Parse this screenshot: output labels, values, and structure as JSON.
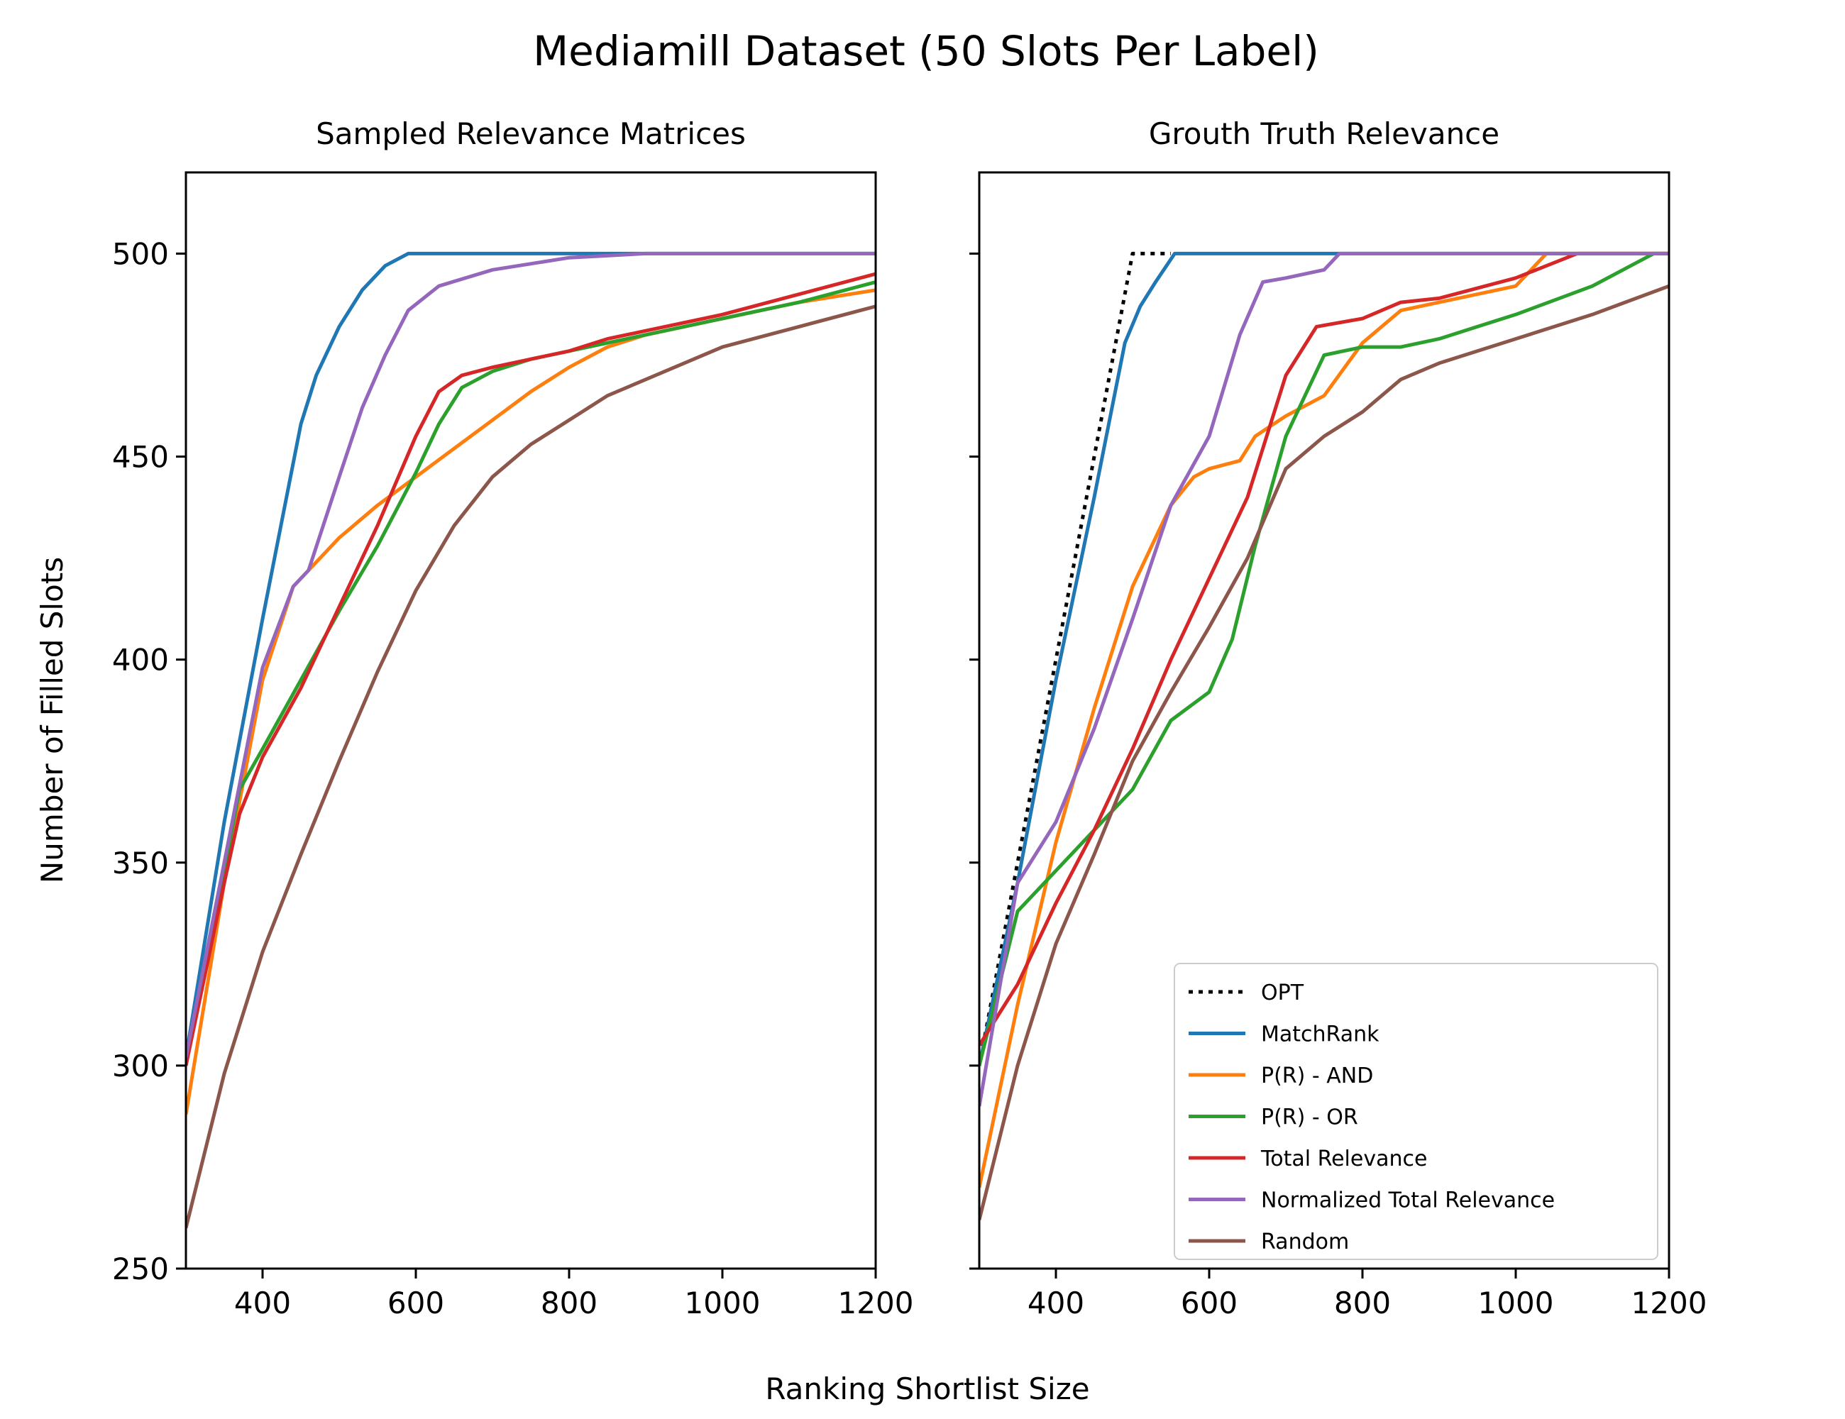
{
  "chart_data": {
    "type": "line",
    "title": "Mediamill Dataset (50 Slots Per Label)",
    "xlabel": "Ranking Shortlist Size",
    "ylabel": "Number of Filled Slots",
    "xlim": [
      300,
      1200
    ],
    "ylim": [
      250,
      520
    ],
    "xticks": [
      400,
      600,
      800,
      1000,
      1200
    ],
    "yticks": [
      250,
      300,
      350,
      400,
      450,
      500
    ],
    "legend": {
      "placement": "lower-right",
      "panel": "right"
    },
    "grid": false,
    "colors": {
      "OPT": "#000000",
      "MatchRank": "#1f77b4",
      "P(R) - AND": "#ff7f0e",
      "P(R) - OR": "#2ca02c",
      "Total Relevance": "#d62728",
      "Normalized Total Relevance": "#9467bd",
      "Random": "#8c564b"
    },
    "panels": [
      {
        "title": "Sampled Relevance Matrices",
        "series": [
          {
            "name": "MatchRank",
            "style": "solid",
            "points": [
              [
                300,
                302
              ],
              [
                350,
                360
              ],
              [
                400,
                410
              ],
              [
                450,
                458
              ],
              [
                470,
                470
              ],
              [
                500,
                482
              ],
              [
                530,
                491
              ],
              [
                560,
                497
              ],
              [
                590,
                500
              ],
              [
                1200,
                500
              ]
            ]
          },
          {
            "name": "P(R) - AND",
            "style": "solid",
            "points": [
              [
                300,
                288
              ],
              [
                350,
                345
              ],
              [
                400,
                395
              ],
              [
                440,
                418
              ],
              [
                460,
                422
              ],
              [
                500,
                430
              ],
              [
                550,
                438
              ],
              [
                600,
                445
              ],
              [
                650,
                452
              ],
              [
                700,
                459
              ],
              [
                750,
                466
              ],
              [
                800,
                472
              ],
              [
                850,
                477
              ],
              [
                900,
                480
              ],
              [
                1000,
                484
              ],
              [
                1100,
                488
              ],
              [
                1200,
                491
              ]
            ]
          },
          {
            "name": "P(R) - OR",
            "style": "solid",
            "points": [
              [
                300,
                300
              ],
              [
                350,
                348
              ],
              [
                370,
                368
              ],
              [
                400,
                378
              ],
              [
                450,
                395
              ],
              [
                500,
                412
              ],
              [
                550,
                428
              ],
              [
                600,
                446
              ],
              [
                630,
                458
              ],
              [
                660,
                467
              ],
              [
                700,
                471
              ],
              [
                750,
                474
              ],
              [
                800,
                476
              ],
              [
                850,
                478
              ],
              [
                900,
                480
              ],
              [
                1000,
                484
              ],
              [
                1100,
                488
              ],
              [
                1200,
                493
              ]
            ]
          },
          {
            "name": "Total Relevance",
            "style": "solid",
            "points": [
              [
                300,
                300
              ],
              [
                350,
                345
              ],
              [
                370,
                362
              ],
              [
                400,
                376
              ],
              [
                450,
                393
              ],
              [
                500,
                413
              ],
              [
                550,
                433
              ],
              [
                600,
                455
              ],
              [
                630,
                466
              ],
              [
                660,
                470
              ],
              [
                700,
                472
              ],
              [
                750,
                474
              ],
              [
                800,
                476
              ],
              [
                850,
                479
              ],
              [
                900,
                481
              ],
              [
                1000,
                485
              ],
              [
                1100,
                490
              ],
              [
                1200,
                495
              ]
            ]
          },
          {
            "name": "Normalized Total Relevance",
            "style": "solid",
            "points": [
              [
                300,
                302
              ],
              [
                350,
                350
              ],
              [
                400,
                398
              ],
              [
                440,
                418
              ],
              [
                460,
                422
              ],
              [
                500,
                445
              ],
              [
                530,
                462
              ],
              [
                560,
                475
              ],
              [
                590,
                486
              ],
              [
                630,
                492
              ],
              [
                700,
                496
              ],
              [
                800,
                499
              ],
              [
                900,
                500
              ],
              [
                1200,
                500
              ]
            ]
          },
          {
            "name": "Random",
            "style": "solid",
            "points": [
              [
                300,
                260
              ],
              [
                350,
                298
              ],
              [
                400,
                328
              ],
              [
                450,
                352
              ],
              [
                500,
                375
              ],
              [
                550,
                397
              ],
              [
                600,
                417
              ],
              [
                650,
                433
              ],
              [
                700,
                445
              ],
              [
                750,
                453
              ],
              [
                800,
                459
              ],
              [
                850,
                465
              ],
              [
                900,
                469
              ],
              [
                1000,
                477
              ],
              [
                1100,
                482
              ],
              [
                1200,
                487
              ]
            ]
          }
        ]
      },
      {
        "title": "Grouth Truth Relevance",
        "series": [
          {
            "name": "OPT",
            "style": "dotted",
            "points": [
              [
                300,
                300
              ],
              [
                350,
                350
              ],
              [
                400,
                400
              ],
              [
                450,
                450
              ],
              [
                500,
                500
              ],
              [
                550,
                500
              ]
            ]
          },
          {
            "name": "MatchRank",
            "style": "solid",
            "points": [
              [
                300,
                300
              ],
              [
                350,
                345
              ],
              [
                400,
                395
              ],
              [
                450,
                440
              ],
              [
                490,
                478
              ],
              [
                510,
                487
              ],
              [
                530,
                493
              ],
              [
                555,
                500
              ],
              [
                1200,
                500
              ]
            ]
          },
          {
            "name": "P(R) - AND",
            "style": "solid",
            "points": [
              [
                300,
                270
              ],
              [
                350,
                315
              ],
              [
                400,
                355
              ],
              [
                450,
                388
              ],
              [
                500,
                418
              ],
              [
                550,
                438
              ],
              [
                580,
                445
              ],
              [
                600,
                447
              ],
              [
                640,
                449
              ],
              [
                660,
                455
              ],
              [
                700,
                460
              ],
              [
                750,
                465
              ],
              [
                800,
                478
              ],
              [
                850,
                486
              ],
              [
                900,
                488
              ],
              [
                1000,
                492
              ],
              [
                1040,
                500
              ],
              [
                1200,
                500
              ]
            ]
          },
          {
            "name": "P(R) - OR",
            "style": "solid",
            "points": [
              [
                300,
                300
              ],
              [
                350,
                338
              ],
              [
                400,
                348
              ],
              [
                450,
                358
              ],
              [
                500,
                368
              ],
              [
                550,
                385
              ],
              [
                600,
                392
              ],
              [
                630,
                405
              ],
              [
                660,
                428
              ],
              [
                700,
                455
              ],
              [
                750,
                475
              ],
              [
                800,
                477
              ],
              [
                850,
                477
              ],
              [
                900,
                479
              ],
              [
                950,
                482
              ],
              [
                1000,
                485
              ],
              [
                1100,
                492
              ],
              [
                1180,
                500
              ],
              [
                1200,
                500
              ]
            ]
          },
          {
            "name": "Total Relevance",
            "style": "solid",
            "points": [
              [
                300,
                305
              ],
              [
                350,
                320
              ],
              [
                400,
                340
              ],
              [
                450,
                358
              ],
              [
                500,
                378
              ],
              [
                550,
                400
              ],
              [
                600,
                420
              ],
              [
                650,
                440
              ],
              [
                700,
                470
              ],
              [
                740,
                482
              ],
              [
                800,
                484
              ],
              [
                850,
                488
              ],
              [
                900,
                489
              ],
              [
                1000,
                494
              ],
              [
                1080,
                500
              ],
              [
                1200,
                500
              ]
            ]
          },
          {
            "name": "Normalized Total Relevance",
            "style": "solid",
            "points": [
              [
                300,
                290
              ],
              [
                350,
                345
              ],
              [
                400,
                360
              ],
              [
                450,
                383
              ],
              [
                500,
                410
              ],
              [
                550,
                438
              ],
              [
                600,
                455
              ],
              [
                640,
                480
              ],
              [
                670,
                493
              ],
              [
                700,
                494
              ],
              [
                750,
                496
              ],
              [
                770,
                500
              ],
              [
                1200,
                500
              ]
            ]
          },
          {
            "name": "Random",
            "style": "solid",
            "points": [
              [
                300,
                262
              ],
              [
                350,
                300
              ],
              [
                400,
                330
              ],
              [
                450,
                352
              ],
              [
                500,
                375
              ],
              [
                550,
                392
              ],
              [
                600,
                408
              ],
              [
                650,
                425
              ],
              [
                700,
                447
              ],
              [
                750,
                455
              ],
              [
                800,
                461
              ],
              [
                850,
                469
              ],
              [
                900,
                473
              ],
              [
                1000,
                479
              ],
              [
                1100,
                485
              ],
              [
                1200,
                492
              ]
            ]
          }
        ]
      }
    ]
  }
}
